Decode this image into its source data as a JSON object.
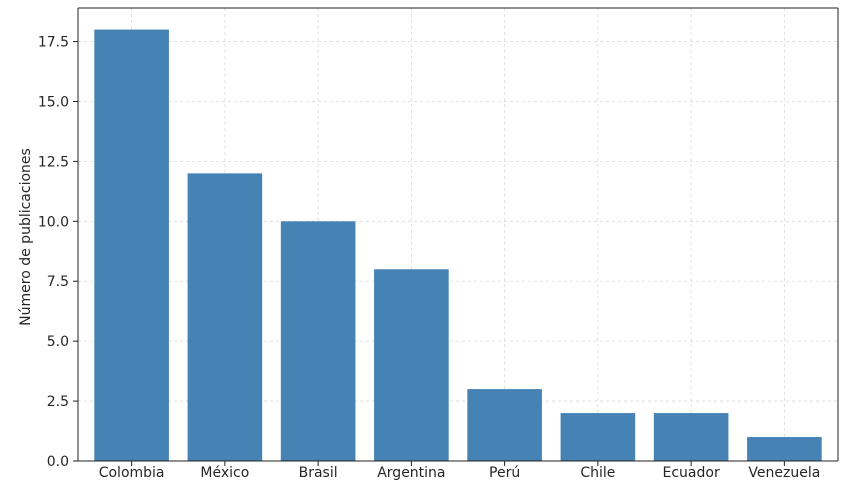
{
  "chart_data": {
    "type": "bar",
    "title": "",
    "xlabel": "",
    "ylabel": "Número de publicaciones",
    "categories": [
      "Colombia",
      "México",
      "Brasil",
      "Argentina",
      "Perú",
      "Chile",
      "Ecuador",
      "Venezuela"
    ],
    "values": [
      18,
      12,
      10,
      8,
      3,
      2,
      2,
      1
    ],
    "ylim": [
      0,
      18.9
    ],
    "yticks": [
      0.0,
      2.5,
      5.0,
      7.5,
      10.0,
      12.5,
      15.0,
      17.5
    ],
    "ytick_labels": [
      "0.0",
      "2.5",
      "5.0",
      "7.5",
      "10.0",
      "12.5",
      "15.0",
      "17.5"
    ],
    "grid": true,
    "colors": {
      "bar": "#4682b4",
      "grid": "#d9d9d9",
      "axis": "#222222",
      "text": "#262626"
    }
  }
}
